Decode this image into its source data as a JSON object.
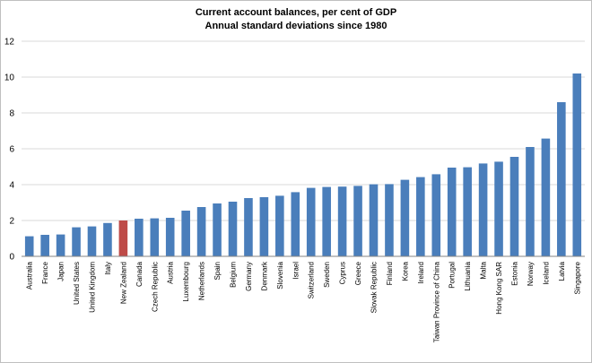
{
  "chart_data": {
    "type": "bar",
    "title": "Current account balances, per cent of GDP",
    "subtitle": "Annual standard deviations since 1980",
    "xlabel": "",
    "ylabel": "",
    "ylim": [
      0,
      12
    ],
    "yticks": [
      0,
      2,
      4,
      6,
      8,
      10,
      12
    ],
    "grid": "horizontal",
    "colors": {
      "default": "#4a7ebb",
      "highlight": "#be4b48"
    },
    "highlight": "New Zealand",
    "categories": [
      "Australia",
      "France",
      "Japan",
      "United States",
      "United Kingdom",
      "Italy",
      "New Zealand",
      "Canada",
      "Czech Republic",
      "Austria",
      "Luxembourg",
      "Netherlands",
      "Spain",
      "Belgium",
      "Germany",
      "Denmark",
      "Slovenia",
      "Israel",
      "Switzerland",
      "Sweden",
      "Cyprus",
      "Greece",
      "Slovak Republic",
      "Finland",
      "Korea",
      "Ireland",
      "Taiwan Province of China",
      "Portugal",
      "Lithuania",
      "Malta",
      "Hong Kong SAR",
      "Estonia",
      "Norway",
      "Iceland",
      "Latvia",
      "Singapore"
    ],
    "values": [
      1.12,
      1.2,
      1.22,
      1.62,
      1.67,
      1.86,
      2.0,
      2.1,
      2.12,
      2.15,
      2.55,
      2.75,
      2.95,
      3.05,
      3.25,
      3.3,
      3.38,
      3.58,
      3.82,
      3.87,
      3.89,
      3.93,
      4.02,
      4.03,
      4.27,
      4.42,
      4.58,
      4.95,
      4.97,
      5.18,
      5.28,
      5.55,
      6.1,
      6.57,
      8.6,
      10.2
    ]
  }
}
